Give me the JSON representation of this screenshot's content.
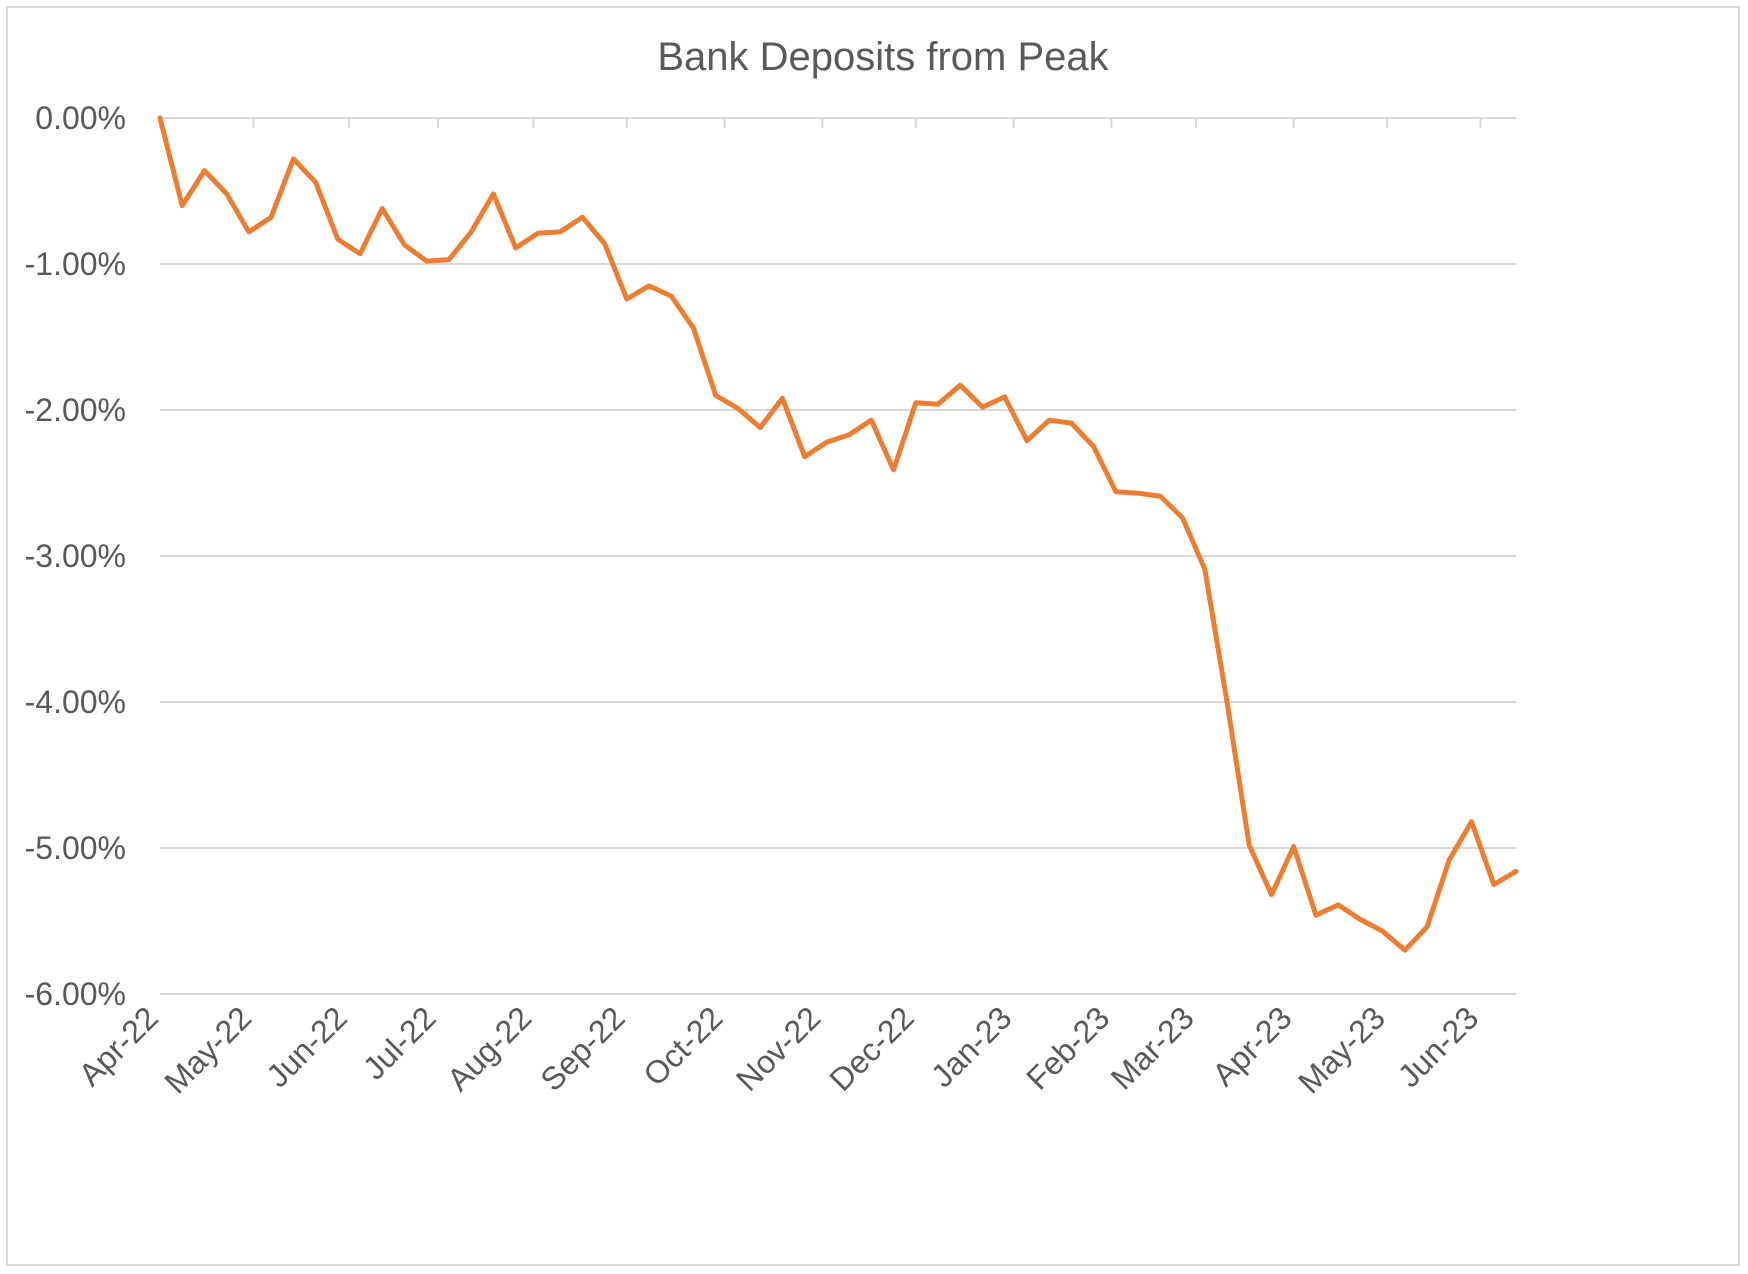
{
  "chart_data": {
    "type": "line",
    "title": "Bank Deposits from Peak",
    "xlabel": "",
    "ylabel": "",
    "ylim": [
      -6,
      0
    ],
    "y_ticks": [
      0,
      -1,
      -2,
      -3,
      -4,
      -5,
      -6
    ],
    "y_tick_labels": [
      "0.00%",
      "-1.00%",
      "-2.00%",
      "-3.00%",
      "-4.00%",
      "-5.00%",
      "-6.00%"
    ],
    "x_tick_labels": [
      "Apr-22",
      "May-22",
      "Jun-22",
      "Jul-22",
      "Aug-22",
      "Sep-22",
      "Oct-22",
      "Nov-22",
      "Dec-22",
      "Jan-23",
      "Feb-23",
      "Mar-23",
      "Apr-23",
      "May-23",
      "Jun-23"
    ],
    "x_tick_positions": [
      0,
      4.2,
      8.5,
      12.5,
      16.8,
      21,
      25.4,
      29.8,
      34,
      38.4,
      42.8,
      46.6,
      51,
      55.2,
      59.4
    ],
    "grid": true,
    "legend": "none",
    "colors": {
      "line": "#ed7d31",
      "grid": "#d9d9d9",
      "text": "#595959"
    },
    "series": [
      {
        "values": [
          0,
          -0.6,
          -0.36,
          -0.52,
          -0.78,
          -0.68,
          -0.28,
          -0.44,
          -0.83,
          -0.93,
          -0.62,
          -0.87,
          -0.98,
          -0.97,
          -0.78,
          -0.52,
          -0.89,
          -0.79,
          -0.78,
          -0.68,
          -0.86,
          -1.24,
          -1.15,
          -1.22,
          -1.44,
          -1.9,
          -1.99,
          -2.12,
          -1.92,
          -2.32,
          -2.22,
          -2.17,
          -2.07,
          -2.41,
          -1.95,
          -1.96,
          -1.83,
          -1.98,
          -1.91,
          -2.21,
          -2.07,
          -2.09,
          -2.25,
          -2.56,
          -2.57,
          -2.59,
          -2.74,
          -3.09,
          -4.0,
          -4.98,
          -5.32,
          -4.99,
          -5.46,
          -5.39,
          -5.49,
          -5.57,
          -5.7,
          -5.54,
          -5.08,
          -4.82,
          -5.25,
          -5.16
        ]
      }
    ]
  }
}
